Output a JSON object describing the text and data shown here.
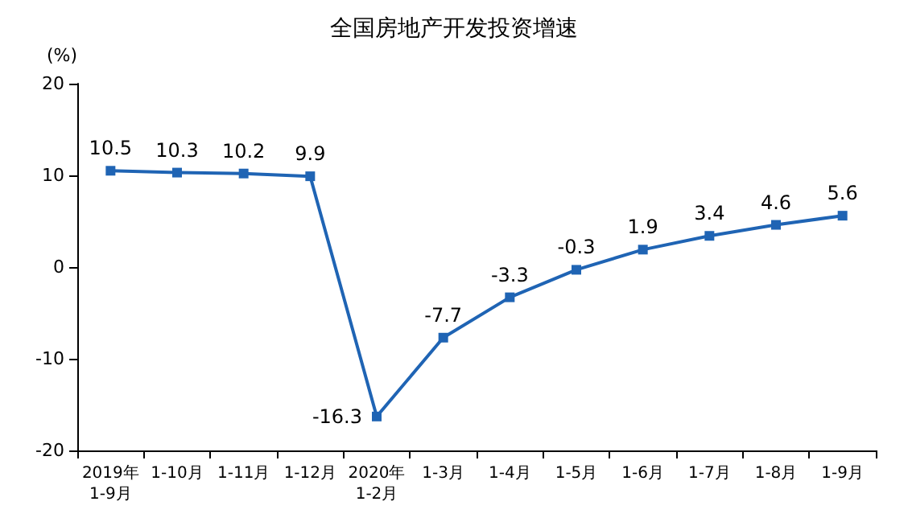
{
  "chart_data": {
    "type": "line",
    "title": "全国房地产开发投资增速",
    "ylabel": "(%)",
    "categories": [
      "2019年\n1-9月",
      "1-10月",
      "1-11月",
      "1-12月",
      "2020年\n1-2月",
      "1-3月",
      "1-4月",
      "1-5月",
      "1-6月",
      "1-7月",
      "1-8月",
      "1-9月"
    ],
    "series": [
      {
        "color": "#1f64b4",
        "values": [
          10.5,
          10.3,
          10.2,
          9.9,
          -16.3,
          -7.7,
          -3.3,
          -0.3,
          1.9,
          3.4,
          4.6,
          5.6
        ]
      }
    ],
    "ylim": [
      -20,
      20
    ],
    "yticks": [
      -20,
      -10,
      0,
      10,
      20
    ],
    "grid": false,
    "marker": "square",
    "line_style": "solid",
    "data_labels": true
  }
}
